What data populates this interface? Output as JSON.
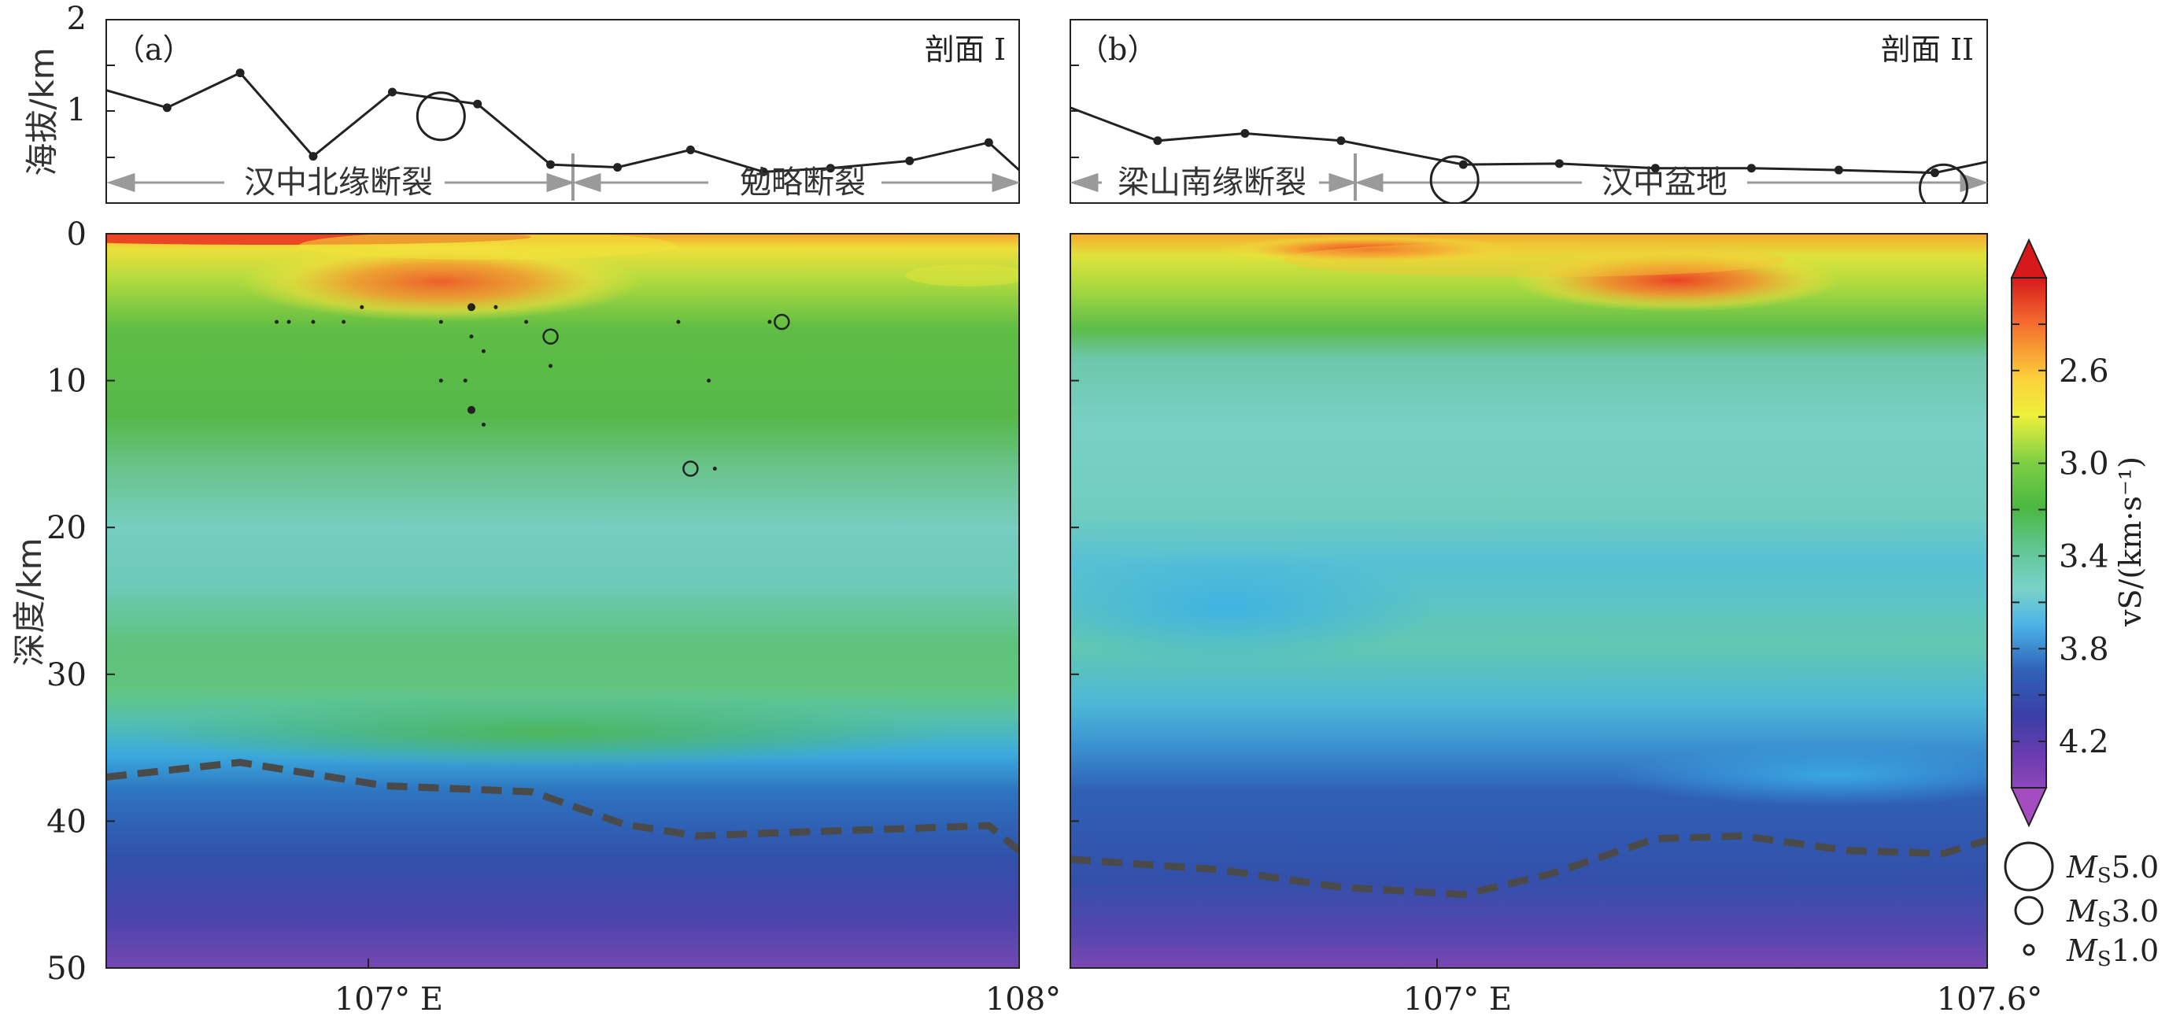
{
  "chart_data": [
    {
      "panel_id": "a",
      "panel_label": "（a）",
      "profile_name": "剖面 I",
      "type": "line",
      "role": "elevation",
      "ylabel": "海拔/km",
      "ylim": [
        0,
        2
      ],
      "yticks": [
        "2",
        "1"
      ],
      "xlim": [
        106.5,
        108.0
      ],
      "x": [
        106.5,
        106.6,
        106.72,
        106.84,
        106.97,
        107.11,
        107.23,
        107.34,
        107.46,
        107.58,
        107.69,
        107.82,
        107.95,
        108.0
      ],
      "y": [
        1.23,
        1.04,
        1.42,
        0.51,
        1.21,
        1.08,
        0.42,
        0.39,
        0.58,
        0.34,
        0.38,
        0.46,
        0.66,
        0.36
      ],
      "annotations": [
        {
          "text": "汉中北缘断裂",
          "x_start": 106.5,
          "x_end": 107.27
        },
        {
          "text": "勉略断裂",
          "x_start": 107.27,
          "x_end": 108.0
        }
      ],
      "boundary_x": 107.27,
      "events": [
        {
          "x": 107.05,
          "mag": 5.0
        }
      ]
    },
    {
      "panel_id": "a",
      "type": "heatmap",
      "role": "vs-section",
      "ylabel": "深度/km",
      "ylim": [
        0,
        50
      ],
      "yticks": [
        "0",
        "10",
        "20",
        "30",
        "40",
        "50"
      ],
      "xlim": [
        106.5,
        108.0
      ],
      "xticks": [
        "107° E",
        "108°"
      ],
      "moho_x": [
        106.5,
        106.72,
        106.96,
        107.2,
        107.35,
        107.47,
        107.6,
        107.82,
        107.95,
        108.0
      ],
      "moho_depth": [
        37.0,
        36.0,
        37.6,
        38.0,
        40.2,
        41.0,
        40.8,
        40.5,
        40.3,
        42.0
      ],
      "events": [
        {
          "x": 106.78,
          "depth": 6,
          "mag": 1.0
        },
        {
          "x": 106.8,
          "depth": 6,
          "mag": 1.0
        },
        {
          "x": 106.84,
          "depth": 6,
          "mag": 1.0
        },
        {
          "x": 106.89,
          "depth": 6,
          "mag": 1.0
        },
        {
          "x": 106.92,
          "depth": 5,
          "mag": 1.0
        },
        {
          "x": 107.05,
          "depth": 6,
          "mag": 1.0
        },
        {
          "x": 107.1,
          "depth": 5,
          "mag": 2.0
        },
        {
          "x": 107.14,
          "depth": 5,
          "mag": 1.0
        },
        {
          "x": 107.1,
          "depth": 7,
          "mag": 1.0
        },
        {
          "x": 107.12,
          "depth": 8,
          "mag": 1.0
        },
        {
          "x": 107.05,
          "depth": 10,
          "mag": 1.0
        },
        {
          "x": 107.09,
          "depth": 10,
          "mag": 1.0
        },
        {
          "x": 107.1,
          "depth": 12,
          "mag": 2.0
        },
        {
          "x": 107.12,
          "depth": 13,
          "mag": 1.0
        },
        {
          "x": 107.19,
          "depth": 6,
          "mag": 1.0
        },
        {
          "x": 107.23,
          "depth": 7,
          "mag": 3.0
        },
        {
          "x": 107.23,
          "depth": 9,
          "mag": 1.0
        },
        {
          "x": 107.44,
          "depth": 6,
          "mag": 1.0
        },
        {
          "x": 107.49,
          "depth": 10,
          "mag": 1.0
        },
        {
          "x": 107.59,
          "depth": 6,
          "mag": 1.0
        },
        {
          "x": 107.61,
          "depth": 6,
          "mag": 3.0
        },
        {
          "x": 107.46,
          "depth": 16,
          "mag": 3.0
        },
        {
          "x": 107.5,
          "depth": 16,
          "mag": 1.0
        }
      ]
    },
    {
      "panel_id": "b",
      "panel_label": "（b）",
      "profile_name": "剖面 II",
      "type": "line",
      "role": "elevation",
      "ylim": [
        0,
        2
      ],
      "xlim": [
        106.55,
        107.6
      ],
      "x": [
        106.55,
        106.65,
        106.75,
        106.86,
        107.0,
        107.11,
        107.22,
        107.33,
        107.43,
        107.54,
        107.6
      ],
      "y": [
        1.04,
        0.68,
        0.76,
        0.68,
        0.42,
        0.43,
        0.38,
        0.38,
        0.36,
        0.33,
        0.45
      ],
      "annotations": [
        {
          "text": "梁山南缘断裂",
          "x_start": 106.55,
          "x_end": 106.88
        },
        {
          "text": "汉中盆地",
          "x_start": 106.88,
          "x_end": 107.6
        }
      ],
      "boundary_x": 106.88,
      "events": [
        {
          "x": 106.99,
          "mag": 5.0
        },
        {
          "x": 107.55,
          "mag": 5.0
        }
      ]
    },
    {
      "panel_id": "b",
      "type": "heatmap",
      "role": "vs-section",
      "ylim": [
        0,
        50
      ],
      "xlim": [
        106.55,
        107.6
      ],
      "xticks": [
        "107° E",
        "107.6°"
      ],
      "moho_x": [
        106.55,
        106.72,
        106.86,
        107.0,
        107.1,
        107.22,
        107.32,
        107.44,
        107.55,
        107.6
      ],
      "moho_depth": [
        42.6,
        43.3,
        44.5,
        45.0,
        43.6,
        41.2,
        41.0,
        42.0,
        42.2,
        41.3
      ],
      "events": []
    },
    {
      "type": "colorbar",
      "label": "vS/(km·s⁻¹)",
      "range": [
        2.2,
        4.4
      ],
      "tick_values": [
        "2.6",
        "3.0",
        "3.4",
        "3.8",
        "4.2"
      ],
      "colormap_hex": [
        "#d7191c",
        "#f46d2e",
        "#fcd23a",
        "#eef03a",
        "#7fd044",
        "#4ab840",
        "#62c89a",
        "#79d2c8",
        "#4cb4e8",
        "#2f62b8",
        "#3b3fa6",
        "#6c3cb0",
        "#b453c6"
      ]
    }
  ],
  "legend": {
    "label_prefix": "M",
    "label_sub": "S",
    "entries": [
      {
        "mag": 5.0,
        "label": "5.0"
      },
      {
        "mag": 3.0,
        "label": "3.0"
      },
      {
        "mag": 1.0,
        "label": "1.0"
      }
    ]
  }
}
